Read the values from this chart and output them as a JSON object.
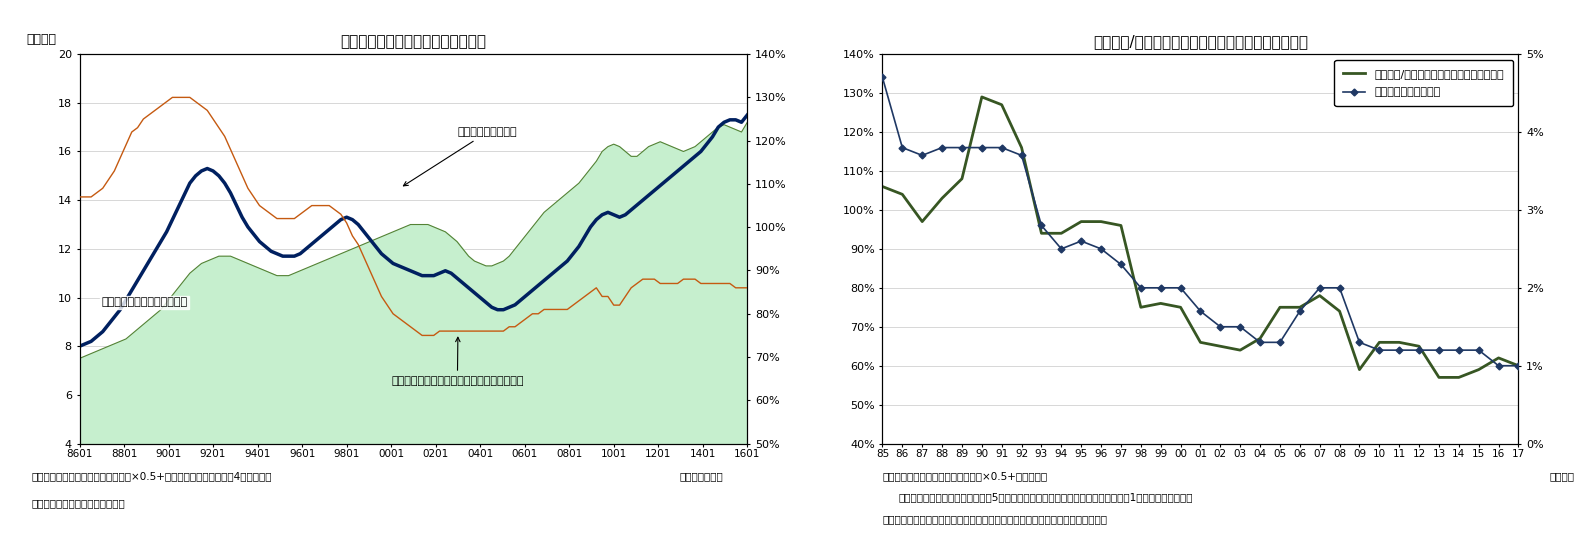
{
  "chart1": {
    "title": "設備投資とキャッシュフローの関係",
    "ylabel_left": "（兆円）",
    "xlabel_note": "（年・四半期）",
    "note1": "（注）キャッシュフロー＝経常利益×0.5+減価償却費。数値は全て4四半期平均",
    "note2": "（資料）財務省「法人企業統計」",
    "ann_capex": "設備投資（左目盛）",
    "ann_cf": "キャッシュフロー（左目盛）",
    "ann_ratio": "設備投資／キャッシュフロー比率（右目盛）",
    "ylim_left": [
      4,
      20
    ],
    "ylim_right": [
      0.5,
      1.4
    ],
    "xtick_labels": [
      "8601",
      "8801",
      "9001",
      "9201",
      "9401",
      "9601",
      "9801",
      "0001",
      "0201",
      "0401",
      "0601",
      "0801",
      "1001",
      "1201",
      "1401",
      "1601"
    ],
    "cashflow_x": [
      0,
      1,
      2,
      3,
      4,
      5,
      6,
      7,
      8,
      9,
      10,
      11,
      12,
      13,
      14,
      15,
      16,
      17,
      18,
      19,
      20,
      21,
      22,
      23,
      24,
      25,
      26,
      27,
      28,
      29,
      30,
      31,
      32,
      33,
      34,
      35,
      36,
      37,
      38,
      39,
      40,
      41,
      42,
      43,
      44,
      45,
      46,
      47,
      48,
      49,
      50,
      51,
      52,
      53,
      54,
      55,
      56,
      57,
      58,
      59,
      60,
      61,
      62,
      63,
      64,
      65,
      66,
      67,
      68,
      69,
      70,
      71,
      72,
      73,
      74,
      75,
      76,
      77,
      78,
      79,
      80,
      81,
      82,
      83,
      84,
      85,
      86,
      87,
      88,
      89,
      90,
      91,
      92,
      93,
      94,
      95,
      96,
      97,
      98,
      99,
      100,
      101,
      102,
      103,
      104,
      105,
      106,
      107,
      108,
      109,
      110,
      111,
      112,
      113,
      114,
      115
    ],
    "cashflow_y": [
      7.5,
      7.6,
      7.7,
      7.8,
      7.9,
      8.0,
      8.1,
      8.2,
      8.3,
      8.5,
      8.7,
      8.9,
      9.1,
      9.3,
      9.5,
      9.8,
      10.1,
      10.4,
      10.7,
      11.0,
      11.2,
      11.4,
      11.5,
      11.6,
      11.7,
      11.7,
      11.7,
      11.6,
      11.5,
      11.4,
      11.3,
      11.2,
      11.1,
      11.0,
      10.9,
      10.9,
      10.9,
      11.0,
      11.1,
      11.2,
      11.3,
      11.4,
      11.5,
      11.6,
      11.7,
      11.8,
      11.9,
      12.0,
      12.1,
      12.2,
      12.3,
      12.4,
      12.5,
      12.6,
      12.7,
      12.8,
      12.9,
      13.0,
      13.0,
      13.0,
      13.0,
      12.9,
      12.8,
      12.7,
      12.5,
      12.3,
      12.0,
      11.7,
      11.5,
      11.4,
      11.3,
      11.3,
      11.4,
      11.5,
      11.7,
      12.0,
      12.3,
      12.6,
      12.9,
      13.2,
      13.5,
      13.7,
      13.9,
      14.1,
      14.3,
      14.5,
      14.7,
      15.0,
      15.3,
      15.6,
      16.0,
      16.2,
      16.3,
      16.2,
      16.0,
      15.8,
      15.8,
      16.0,
      16.2,
      16.3,
      16.4,
      16.3,
      16.2,
      16.1,
      16.0,
      16.1,
      16.2,
      16.4,
      16.6,
      16.8,
      17.0,
      17.1,
      17.0,
      16.9,
      16.8,
      17.2
    ],
    "capex_x": [
      0,
      1,
      2,
      3,
      4,
      5,
      6,
      7,
      8,
      9,
      10,
      11,
      12,
      13,
      14,
      15,
      16,
      17,
      18,
      19,
      20,
      21,
      22,
      23,
      24,
      25,
      26,
      27,
      28,
      29,
      30,
      31,
      32,
      33,
      34,
      35,
      36,
      37,
      38,
      39,
      40,
      41,
      42,
      43,
      44,
      45,
      46,
      47,
      48,
      49,
      50,
      51,
      52,
      53,
      54,
      55,
      56,
      57,
      58,
      59,
      60,
      61,
      62,
      63,
      64,
      65,
      66,
      67,
      68,
      69,
      70,
      71,
      72,
      73,
      74,
      75,
      76,
      77,
      78,
      79,
      80,
      81,
      82,
      83,
      84,
      85,
      86,
      87,
      88,
      89,
      90,
      91,
      92,
      93,
      94,
      95,
      96,
      97,
      98,
      99,
      100,
      101,
      102,
      103,
      104,
      105,
      106,
      107,
      108,
      109,
      110,
      111,
      112,
      113,
      114,
      115
    ],
    "capex_y": [
      8.0,
      8.1,
      8.2,
      8.4,
      8.6,
      8.9,
      9.2,
      9.5,
      9.9,
      10.3,
      10.7,
      11.1,
      11.5,
      11.9,
      12.3,
      12.7,
      13.2,
      13.7,
      14.2,
      14.7,
      15.0,
      15.2,
      15.3,
      15.2,
      15.0,
      14.7,
      14.3,
      13.8,
      13.3,
      12.9,
      12.6,
      12.3,
      12.1,
      11.9,
      11.8,
      11.7,
      11.7,
      11.7,
      11.8,
      12.0,
      12.2,
      12.4,
      12.6,
      12.8,
      13.0,
      13.2,
      13.3,
      13.2,
      13.0,
      12.7,
      12.4,
      12.1,
      11.8,
      11.6,
      11.4,
      11.3,
      11.2,
      11.1,
      11.0,
      10.9,
      10.9,
      10.9,
      11.0,
      11.1,
      11.0,
      10.8,
      10.6,
      10.4,
      10.2,
      10.0,
      9.8,
      9.6,
      9.5,
      9.5,
      9.6,
      9.7,
      9.9,
      10.1,
      10.3,
      10.5,
      10.7,
      10.9,
      11.1,
      11.3,
      11.5,
      11.8,
      12.1,
      12.5,
      12.9,
      13.2,
      13.4,
      13.5,
      13.4,
      13.3,
      13.4,
      13.6,
      13.8,
      14.0,
      14.2,
      14.4,
      14.6,
      14.8,
      15.0,
      15.2,
      15.4,
      15.6,
      15.8,
      16.0,
      16.3,
      16.6,
      17.0,
      17.2,
      17.3,
      17.3,
      17.2,
      17.5
    ],
    "ratio1_x": [
      0,
      1,
      2,
      3,
      4,
      5,
      6,
      7,
      8,
      9,
      10,
      11,
      12,
      13,
      14,
      15,
      16,
      17,
      18,
      19,
      20,
      21,
      22,
      23,
      24,
      25,
      26,
      27,
      28,
      29,
      30,
      31,
      32,
      33,
      34,
      35,
      36,
      37,
      38,
      39,
      40,
      41,
      42,
      43,
      44,
      45,
      46,
      47,
      48,
      49,
      50,
      51,
      52,
      53,
      54,
      55,
      56,
      57,
      58,
      59,
      60,
      61,
      62,
      63,
      64,
      65,
      66,
      67,
      68,
      69,
      70,
      71,
      72,
      73,
      74,
      75,
      76,
      77,
      78,
      79,
      80,
      81,
      82,
      83,
      84,
      85,
      86,
      87,
      88,
      89,
      90,
      91,
      92,
      93,
      94,
      95,
      96,
      97,
      98,
      99,
      100,
      101,
      102,
      103,
      104,
      105,
      106,
      107,
      108,
      109,
      110,
      111,
      112,
      113,
      114,
      115
    ],
    "ratio1_y": [
      1.07,
      1.07,
      1.07,
      1.08,
      1.09,
      1.11,
      1.13,
      1.16,
      1.19,
      1.22,
      1.23,
      1.25,
      1.26,
      1.27,
      1.28,
      1.29,
      1.3,
      1.3,
      1.3,
      1.3,
      1.29,
      1.28,
      1.27,
      1.25,
      1.23,
      1.21,
      1.18,
      1.15,
      1.12,
      1.09,
      1.07,
      1.05,
      1.04,
      1.03,
      1.02,
      1.02,
      1.02,
      1.02,
      1.03,
      1.04,
      1.05,
      1.05,
      1.05,
      1.05,
      1.04,
      1.03,
      1.01,
      0.98,
      0.96,
      0.93,
      0.9,
      0.87,
      0.84,
      0.82,
      0.8,
      0.79,
      0.78,
      0.77,
      0.76,
      0.75,
      0.75,
      0.75,
      0.76,
      0.76,
      0.76,
      0.76,
      0.76,
      0.76,
      0.76,
      0.76,
      0.76,
      0.76,
      0.76,
      0.76,
      0.77,
      0.77,
      0.78,
      0.79,
      0.8,
      0.8,
      0.81,
      0.81,
      0.81,
      0.81,
      0.81,
      0.82,
      0.83,
      0.84,
      0.85,
      0.86,
      0.84,
      0.84,
      0.82,
      0.82,
      0.84,
      0.86,
      0.87,
      0.88,
      0.88,
      0.88,
      0.87,
      0.87,
      0.87,
      0.87,
      0.88,
      0.88,
      0.88,
      0.87,
      0.87,
      0.87,
      0.87,
      0.87,
      0.87,
      0.86,
      0.86,
      0.86
    ]
  },
  "chart2": {
    "title": "設備投資/キャッシュフロー比率と期待成長率の関係",
    "xlabel_note": "（年度）",
    "note1": "（注）キャッシュフロー＝経常利益×0.5+減価償却費",
    "note2": "　　期待成長率は企業による今後5年間の実質経済成長率見通し、当該年度直前の1月時点の調査による",
    "note3": "（資料）財務省「法人企業統計」、内閣府「企業行動に関するアンケート調査」",
    "legend1": "設備投資/キャッシュフロー比率（左目盛）",
    "legend2": "期待成長率（右目盛）",
    "ylim_left": [
      0.4,
      1.4
    ],
    "ylim_right": [
      0.0,
      0.05
    ],
    "xtick_labels": [
      "85",
      "86",
      "87",
      "88",
      "89",
      "90",
      "91",
      "92",
      "93",
      "94",
      "95",
      "96",
      "97",
      "98",
      "99",
      "00",
      "01",
      "02",
      "03",
      "04",
      "05",
      "06",
      "07",
      "08",
      "09",
      "10",
      "11",
      "12",
      "13",
      "14",
      "15",
      "16",
      "17"
    ],
    "ratio2_y": [
      1.06,
      1.04,
      0.97,
      1.03,
      1.08,
      1.29,
      1.27,
      1.16,
      0.94,
      0.94,
      0.97,
      0.97,
      0.96,
      0.75,
      0.76,
      0.75,
      0.66,
      0.65,
      0.64,
      0.67,
      0.75,
      0.75,
      0.78,
      0.74,
      0.59,
      0.66,
      0.66,
      0.65,
      0.57,
      0.57,
      0.59,
      0.62,
      0.6
    ],
    "growth_y": [
      0.047,
      0.038,
      0.037,
      0.038,
      0.038,
      0.038,
      0.038,
      0.037,
      0.028,
      0.025,
      0.026,
      0.025,
      0.023,
      0.02,
      0.02,
      0.02,
      0.017,
      0.015,
      0.015,
      0.013,
      0.013,
      0.017,
      0.02,
      0.02,
      0.013,
      0.012,
      0.012,
      0.012,
      0.012,
      0.012,
      0.012,
      0.01,
      0.01
    ]
  },
  "colors": {
    "cashflow_fill": "#c6efce",
    "cashflow_line": "#548235",
    "capex_line": "#002060",
    "ratio_line1": "#c55a11",
    "ratio_line2": "#375623",
    "growth_line": "#1f3864",
    "bg": "#ffffff",
    "grid": "#c8c8c8"
  }
}
